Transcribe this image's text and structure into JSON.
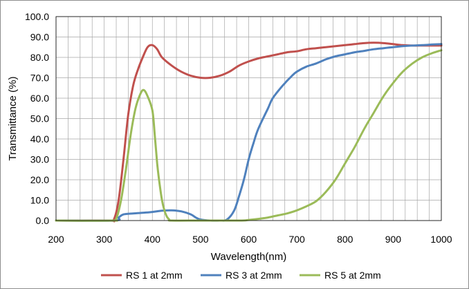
{
  "chart_data": {
    "type": "line",
    "title": "",
    "xlabel": "Wavelength(nm)",
    "ylabel": "Transmittance (%)",
    "xlim": [
      200,
      1000
    ],
    "ylim": [
      0,
      100
    ],
    "x_ticks": [
      "200",
      "300",
      "400",
      "500",
      "600",
      "700",
      "800",
      "900",
      "1000"
    ],
    "y_ticks": [
      "0.0",
      "10.0",
      "20.0",
      "30.0",
      "40.0",
      "50.0",
      "60.0",
      "70.0",
      "80.0",
      "90.0",
      "100.0"
    ],
    "grid": true,
    "legend_position": "bottom",
    "series": [
      {
        "name": "RS 1 at 2mm",
        "color": "#c0504d",
        "points": [
          [
            200,
            0
          ],
          [
            310,
            0
          ],
          [
            320,
            0.5
          ],
          [
            330,
            10
          ],
          [
            340,
            30
          ],
          [
            350,
            52
          ],
          [
            360,
            66
          ],
          [
            370,
            74
          ],
          [
            380,
            80
          ],
          [
            390,
            85
          ],
          [
            400,
            86
          ],
          [
            410,
            84
          ],
          [
            420,
            80
          ],
          [
            440,
            76
          ],
          [
            460,
            73
          ],
          [
            480,
            71
          ],
          [
            500,
            70
          ],
          [
            520,
            70
          ],
          [
            540,
            71
          ],
          [
            560,
            73
          ],
          [
            580,
            76
          ],
          [
            600,
            78
          ],
          [
            620,
            79.5
          ],
          [
            640,
            80.5
          ],
          [
            660,
            81.5
          ],
          [
            680,
            82.5
          ],
          [
            700,
            83
          ],
          [
            720,
            84
          ],
          [
            740,
            84.5
          ],
          [
            760,
            85
          ],
          [
            780,
            85.5
          ],
          [
            800,
            86
          ],
          [
            820,
            86.5
          ],
          [
            840,
            87
          ],
          [
            860,
            87.2
          ],
          [
            880,
            87
          ],
          [
            900,
            86.5
          ],
          [
            920,
            86
          ],
          [
            940,
            85.8
          ],
          [
            960,
            85.8
          ],
          [
            980,
            85.8
          ],
          [
            1000,
            85.8
          ]
        ]
      },
      {
        "name": "RS 3 at 2mm",
        "color": "#4f81bd",
        "points": [
          [
            200,
            0
          ],
          [
            320,
            0
          ],
          [
            330,
            1.5
          ],
          [
            340,
            3
          ],
          [
            360,
            3.5
          ],
          [
            380,
            3.8
          ],
          [
            400,
            4.2
          ],
          [
            420,
            4.8
          ],
          [
            440,
            5
          ],
          [
            460,
            4.5
          ],
          [
            480,
            3
          ],
          [
            490,
            1.5
          ],
          [
            500,
            0.5
          ],
          [
            520,
            0
          ],
          [
            540,
            0
          ],
          [
            555,
            0.5
          ],
          [
            570,
            5
          ],
          [
            580,
            12
          ],
          [
            590,
            20
          ],
          [
            600,
            30
          ],
          [
            610,
            38
          ],
          [
            620,
            45
          ],
          [
            640,
            55
          ],
          [
            650,
            60
          ],
          [
            670,
            66
          ],
          [
            690,
            71
          ],
          [
            700,
            73
          ],
          [
            720,
            75.5
          ],
          [
            740,
            77
          ],
          [
            760,
            79
          ],
          [
            780,
            80.5
          ],
          [
            800,
            81.5
          ],
          [
            820,
            82.5
          ],
          [
            840,
            83.2
          ],
          [
            860,
            84
          ],
          [
            880,
            84.5
          ],
          [
            900,
            85
          ],
          [
            920,
            85.5
          ],
          [
            940,
            85.8
          ],
          [
            960,
            86
          ],
          [
            980,
            86.3
          ],
          [
            1000,
            86.5
          ]
        ]
      },
      {
        "name": "RS 5 at 2mm",
        "color": "#9bbb59",
        "points": [
          [
            200,
            0
          ],
          [
            315,
            0
          ],
          [
            325,
            1
          ],
          [
            335,
            10
          ],
          [
            345,
            25
          ],
          [
            355,
            42
          ],
          [
            365,
            55
          ],
          [
            375,
            62
          ],
          [
            382,
            64
          ],
          [
            390,
            61
          ],
          [
            400,
            54
          ],
          [
            405,
            42
          ],
          [
            410,
            28
          ],
          [
            415,
            18
          ],
          [
            420,
            10
          ],
          [
            425,
            5
          ],
          [
            430,
            2
          ],
          [
            435,
            0.5
          ],
          [
            440,
            0
          ],
          [
            500,
            0
          ],
          [
            580,
            0
          ],
          [
            600,
            0.3
          ],
          [
            620,
            0.8
          ],
          [
            640,
            1.5
          ],
          [
            660,
            2.5
          ],
          [
            680,
            3.5
          ],
          [
            700,
            5
          ],
          [
            720,
            7
          ],
          [
            740,
            9.5
          ],
          [
            760,
            14
          ],
          [
            780,
            20
          ],
          [
            800,
            28
          ],
          [
            820,
            36
          ],
          [
            840,
            45
          ],
          [
            860,
            53
          ],
          [
            880,
            61
          ],
          [
            900,
            67.5
          ],
          [
            920,
            73
          ],
          [
            940,
            77
          ],
          [
            960,
            80
          ],
          [
            980,
            82
          ],
          [
            1000,
            83.5
          ]
        ]
      }
    ]
  }
}
